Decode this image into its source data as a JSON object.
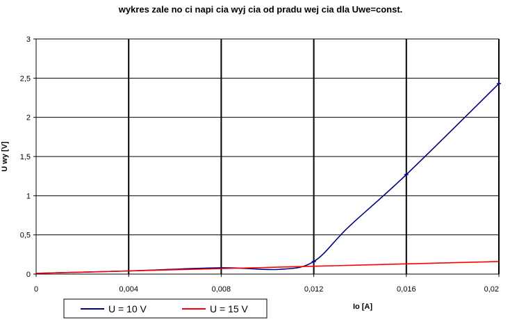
{
  "chart_data": {
    "type": "line",
    "title": "wykres zale  no  ci napi  cia wyj  cia od pradu wej  cia dla Uwe=const.",
    "xlabel": "Io  [A]",
    "ylabel": "U wy [V]",
    "xlim": [
      0,
      0.02
    ],
    "ylim": [
      0,
      3
    ],
    "x_ticks": [
      0,
      0.004,
      0.008,
      0.012,
      0.016,
      0.02
    ],
    "x_tick_labels": [
      "0",
      "0,004",
      "0,008",
      "0,012",
      "0,016",
      "0,02"
    ],
    "y_ticks": [
      0,
      0.5,
      1,
      1.5,
      2,
      2.5,
      3
    ],
    "y_tick_labels": [
      "0",
      "0,5",
      "1",
      "1,5",
      "2",
      "2,5",
      "3"
    ],
    "grid": true,
    "legend_position": "bottom-left",
    "series": [
      {
        "name": "U = 10 V",
        "color": "#000080",
        "x": [
          0,
          0.004,
          0.008,
          0.0105,
          0.012,
          0.0135,
          0.016,
          0.02
        ],
        "y": [
          0.01,
          0.04,
          0.08,
          0.06,
          0.16,
          0.6,
          1.27,
          2.43
        ],
        "markers": [
          {
            "x": 0.012,
            "y": 0.16
          },
          {
            "x": 0.016,
            "y": 1.27
          },
          {
            "x": 0.02,
            "y": 2.43
          }
        ]
      },
      {
        "name": "U = 15 V",
        "color": "#ff0000",
        "x": [
          0,
          0.004,
          0.008,
          0.012,
          0.016,
          0.02
        ],
        "y": [
          0.01,
          0.04,
          0.07,
          0.1,
          0.13,
          0.16
        ]
      }
    ]
  }
}
